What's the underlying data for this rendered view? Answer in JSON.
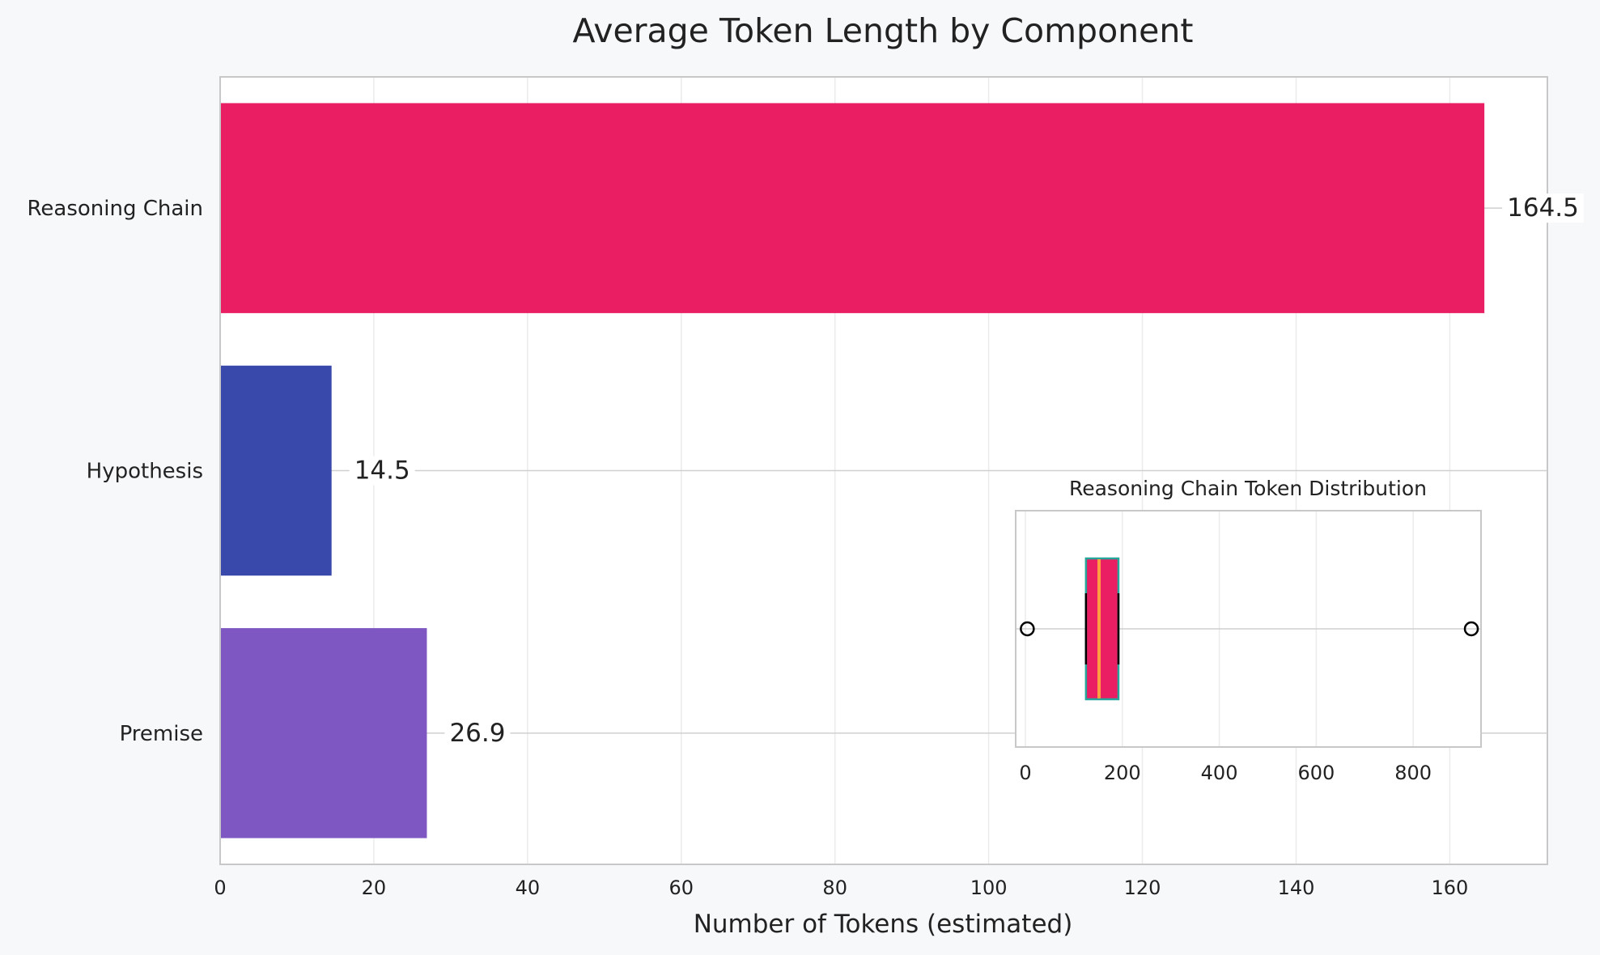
{
  "chart_data": [
    {
      "type": "bar",
      "orientation": "horizontal",
      "title": "Average Token Length by Component",
      "xlabel": "Number of Tokens (estimated)",
      "ylabel": "",
      "categories": [
        "Reasoning Chain",
        "Hypothesis",
        "Premise"
      ],
      "values": [
        164.5,
        14.5,
        26.9
      ],
      "value_labels": [
        "164.5",
        "14.5",
        "26.9"
      ],
      "colors": [
        "#e91e63",
        "#3949ab",
        "#7e57c2"
      ],
      "xlim": [
        0,
        172.7
      ],
      "xticks": [
        0,
        20,
        40,
        60,
        80,
        100,
        120,
        140,
        160
      ],
      "xtick_labels": [
        "0",
        "20",
        "40",
        "60",
        "80",
        "100",
        "120",
        "140",
        "160"
      ],
      "grid": true
    },
    {
      "type": "boxplot",
      "orientation": "horizontal",
      "title": "Reasoning Chain Token Distribution",
      "placement": "inset lower-right",
      "xlim": [
        -20,
        940
      ],
      "xticks": [
        0,
        200,
        400,
        600,
        800
      ],
      "xtick_labels": [
        "0",
        "200",
        "400",
        "600",
        "800"
      ],
      "box": {
        "q1": 125,
        "median": 152,
        "q3": 192,
        "whisker_low": 125,
        "whisker_high": 192
      },
      "outliers": [
        4,
        920
      ],
      "box_fill": "#e91e63",
      "box_edge": "#26a69a",
      "median_color": "#ff9e40",
      "grid": true
    }
  ]
}
